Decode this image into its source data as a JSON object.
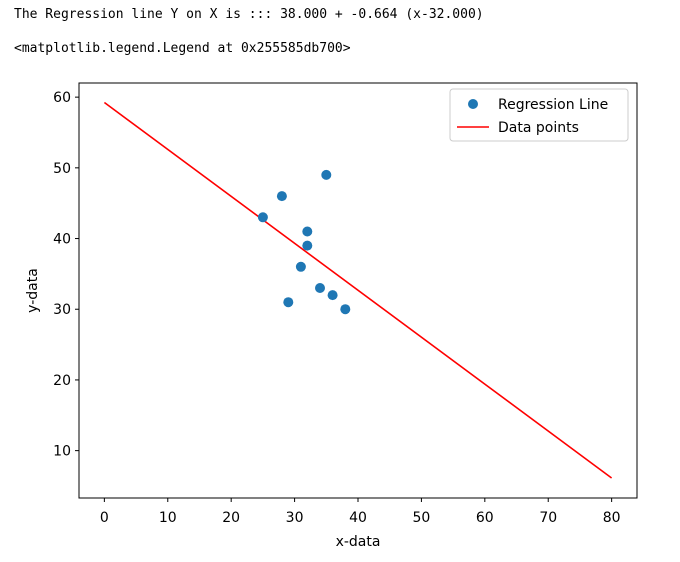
{
  "output": {
    "line1": "The Regression line Y on X is ::: 38.000 + -0.664 (x-32.000)",
    "line2": "<matplotlib.legend.Legend at 0x255585db700>"
  },
  "chart_data": {
    "type": "scatter",
    "xlabel": "x-data",
    "ylabel": "y-data",
    "xlim": [
      -4,
      84
    ],
    "ylim": [
      3.3,
      62
    ],
    "xticks": [
      0,
      10,
      20,
      30,
      40,
      50,
      60,
      70,
      80
    ],
    "yticks": [
      10,
      20,
      30,
      40,
      50,
      60
    ],
    "grid": false,
    "legend_position": "top-right",
    "series": [
      {
        "name": "Regression Line",
        "kind": "scatter",
        "color": "#1f77b4",
        "points": [
          [
            25,
            43
          ],
          [
            28,
            46
          ],
          [
            29,
            31
          ],
          [
            31,
            36
          ],
          [
            32,
            41
          ],
          [
            32,
            39
          ],
          [
            34,
            33
          ],
          [
            35,
            49
          ],
          [
            36,
            32
          ],
          [
            38,
            30
          ]
        ]
      },
      {
        "name": "Data points",
        "kind": "line",
        "color": "#ff0000",
        "points": [
          [
            0,
            59.248
          ],
          [
            80,
            6.128
          ]
        ]
      }
    ]
  }
}
